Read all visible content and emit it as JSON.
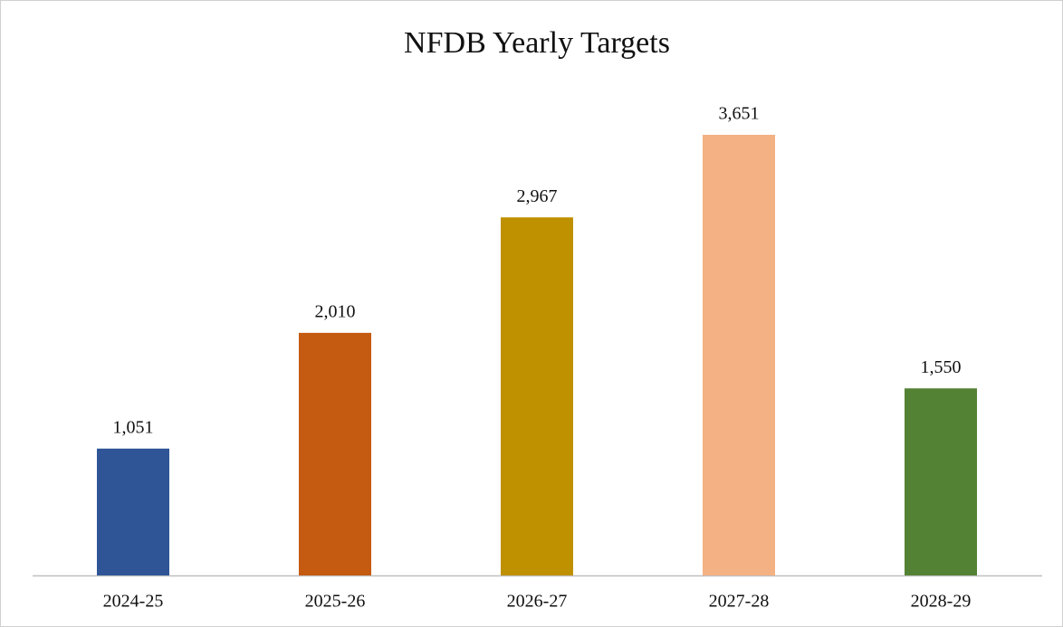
{
  "chart_data": {
    "type": "bar",
    "title": "NFDB Yearly Targets",
    "categories": [
      "2024-25",
      "2025-26",
      "2026-27",
      "2027-28",
      "2028-29"
    ],
    "values": [
      1051,
      2010,
      2967,
      3651,
      1550
    ],
    "value_labels": [
      "1,051",
      "2,010",
      "2,967",
      "3,651",
      "1,550"
    ],
    "colors": [
      "#2f5597",
      "#c55a11",
      "#bf9000",
      "#f4b183",
      "#548235"
    ],
    "grid": false
  }
}
